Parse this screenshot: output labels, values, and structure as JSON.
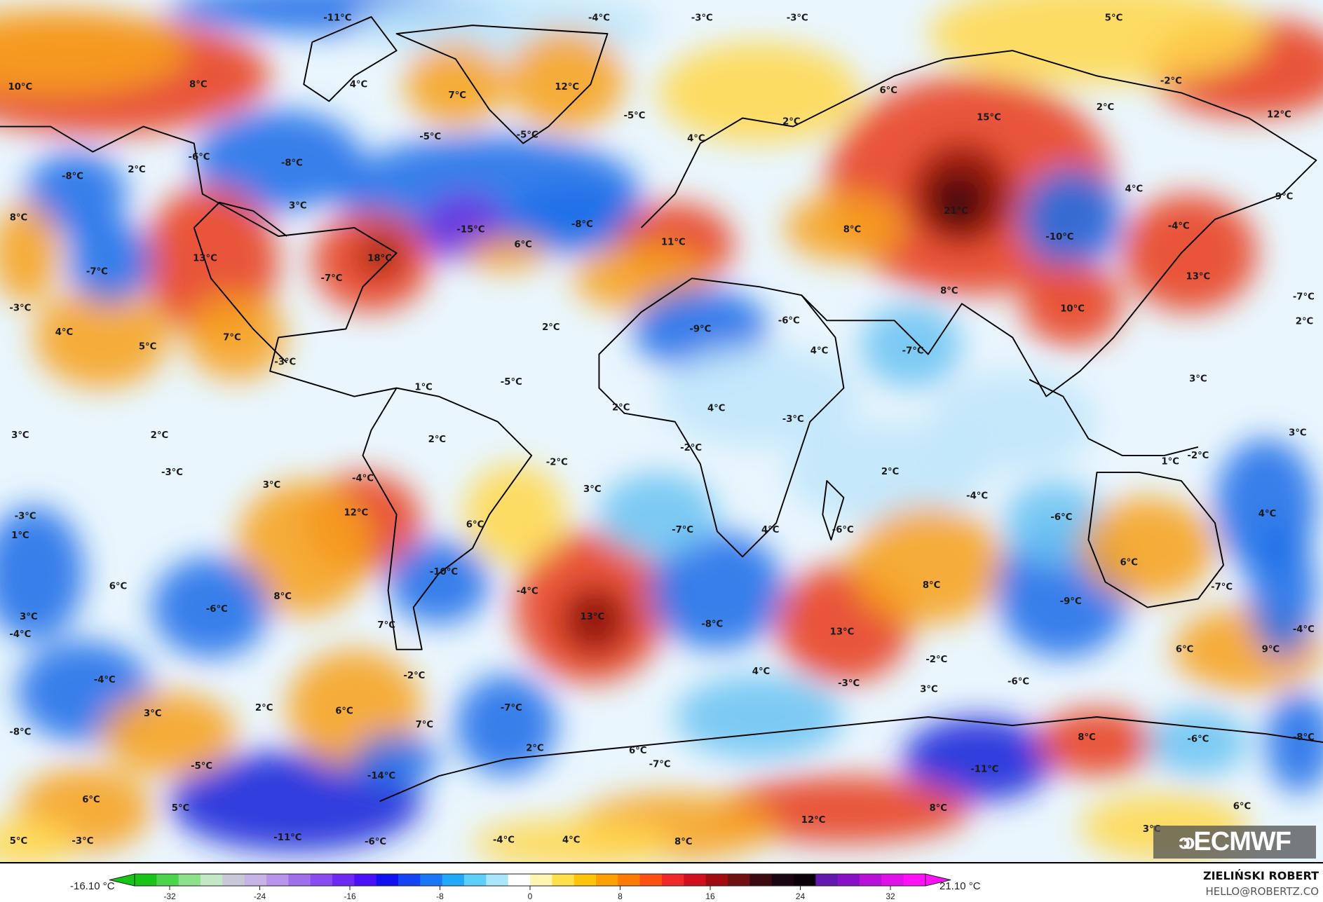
{
  "map": {
    "labels": [
      "-11°C",
      "-4°C",
      "-3°C",
      "-3°C",
      "5°C",
      "10°C",
      "8°C",
      "4°C",
      "7°C",
      "12°C",
      "6°C",
      "-2°C",
      "12°C",
      "-5°C",
      "-5°C",
      "2°C",
      "4°C",
      "2°C",
      "15°C",
      "-5°C",
      "-6°C",
      "-8°C",
      "-8°C",
      "2°C",
      "3°C",
      "4°C",
      "9°C",
      "8°C",
      "13°C",
      "18°C",
      "-15°C",
      "-8°C",
      "6°C",
      "21°C",
      "8°C",
      "-10°C",
      "-4°C",
      "-7°C",
      "-7°C",
      "11°C",
      "13°C",
      "-7°C",
      "-3°C",
      "8°C",
      "10°C",
      "2°C",
      "-6°C",
      "4°C",
      "5°C",
      "7°C",
      "2°C",
      "-9°C",
      "4°C",
      "-7°C",
      "-3°C",
      "3°C",
      "1°C",
      "-5°C",
      "2°C",
      "4°C",
      "-3°C",
      "3°C",
      "2°C",
      "2°C",
      "-2°C",
      "-2°C",
      "2°C",
      "1°C",
      "-2°C",
      "3°C",
      "-3°C",
      "3°C",
      "-4°C",
      "3°C",
      "-4°C",
      "-3°C",
      "12°C",
      "6°C",
      "-6°C",
      "4°C",
      "1°C",
      "-7°C",
      "4°C",
      "-6°C",
      "6°C",
      "8°C",
      "-10°C",
      "-4°C",
      "6°C",
      "8°C",
      "-7°C",
      "3°C",
      "-6°C",
      "13°C",
      "-8°C",
      "-9°C",
      "-4°C",
      "7°C",
      "13°C",
      "-4°C",
      "-2°C",
      "6°C",
      "9°C",
      "-4°C",
      "-2°C",
      "4°C",
      "-3°C",
      "-6°C",
      "3°C",
      "3°C",
      "2°C",
      "6°C",
      "-7°C",
      "-8°C",
      "7°C",
      "2°C",
      "8°C",
      "-6°C",
      "-8°C",
      "6°C",
      "-7°C",
      "-5°C",
      "-14°C",
      "-11°C",
      "6°C",
      "5°C",
      "12°C",
      "8°C",
      "6°C",
      "5°C",
      "-3°C",
      "-11°C",
      "-6°C",
      "-4°C",
      "4°C",
      "8°C",
      "3°C"
    ],
    "logo": "ECMWF"
  },
  "colorbar": {
    "min_value": "-16.10 °C",
    "max_value": "21.10 °C",
    "ticks": [
      "-32",
      "-24",
      "-16",
      "-8",
      "0",
      "8",
      "16",
      "24",
      "32"
    ],
    "range": [
      -32,
      32
    ],
    "colors": [
      "#18c418",
      "#4cd44c",
      "#8be28b",
      "#c4e8c4",
      "#c8c8d8",
      "#c6b4e6",
      "#b894ea",
      "#a070ec",
      "#8a4cf0",
      "#7028f4",
      "#4a10f8",
      "#1010f0",
      "#1444f4",
      "#1a78f8",
      "#20a8fa",
      "#5cd0fa",
      "#a8e6fc",
      "#ffffff",
      "#fff4b0",
      "#ffe04a",
      "#ffc40a",
      "#ffa000",
      "#ff7a00",
      "#ff5010",
      "#f02828",
      "#d0101c",
      "#a00c10",
      "#701010",
      "#3a0a10",
      "#1a0610",
      "#0c0008",
      "#6018b0",
      "#8a10c8",
      "#b810d8",
      "#e010e8",
      "#ff10f8"
    ]
  },
  "author": {
    "name": "ZIELIŃSKI ROBERT",
    "email": "HELLO@ROBERTZ.CO"
  }
}
